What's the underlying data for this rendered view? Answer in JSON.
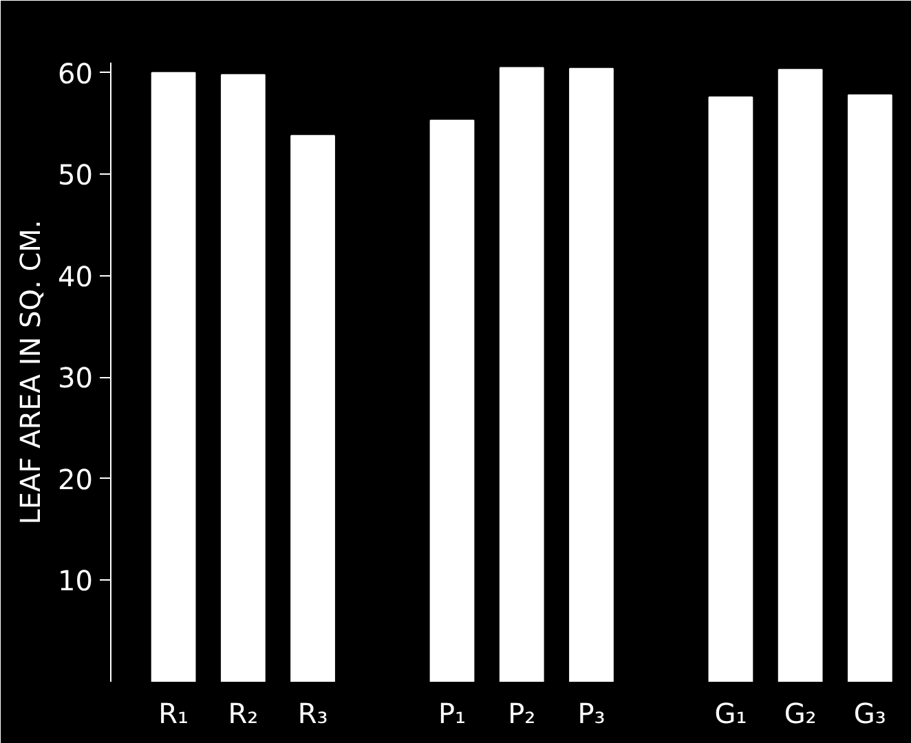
{
  "chart_data": {
    "type": "bar",
    "ylabel": "LEAF AREA IN SQ. CM.",
    "categories": [
      "R₁",
      "R₂",
      "R₃",
      null,
      "P₁",
      "P₂",
      "P₃",
      null,
      "G₁",
      "G₂",
      "G₃"
    ],
    "values": [
      60,
      59.8,
      53.8,
      null,
      55.3,
      60.5,
      60.4,
      null,
      57.6,
      60.3,
      57.8
    ],
    "color": "#ffffff",
    "ylim": [
      0,
      61
    ],
    "yticks": [
      10,
      20,
      30,
      40,
      50,
      60
    ],
    "grid": false
  }
}
